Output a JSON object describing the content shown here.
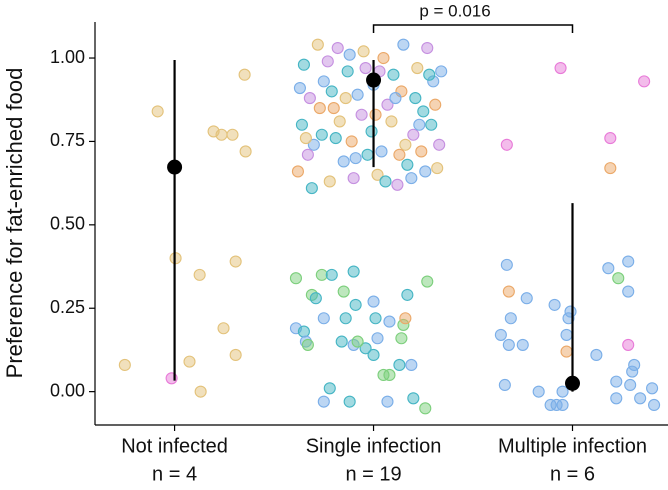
{
  "chart_data": {
    "type": "scatter",
    "ylabel": "Preference for fat-enriched food",
    "annotation": "p = 0.016",
    "xlim": [
      0.6,
      3.48
    ],
    "xticks": [
      {
        "value": 1,
        "label": "Not infected"
      },
      {
        "value": 2,
        "label": "Single infection"
      },
      {
        "value": 3,
        "label": "Multiple infection"
      }
    ],
    "counts": [
      "n = 4",
      "n = 19",
      "n = 6"
    ],
    "ylim": [
      -0.1,
      1.108
    ],
    "yticks": [
      {
        "value": 0,
        "label": "0.00"
      },
      {
        "value": 0.25,
        "label": "0.25"
      },
      {
        "value": 0.5,
        "label": "0.50"
      },
      {
        "value": 0.75,
        "label": "0.75"
      },
      {
        "value": 1,
        "label": "1.00"
      }
    ],
    "means": {
      "color": "#000000",
      "values": [
        0.673,
        0.934,
        0.025
      ],
      "lower": [
        0.033,
        0.673,
        0
      ],
      "upper": [
        0.994,
        0.994,
        0.565
      ]
    },
    "points": [
      {
        "x": 0.75,
        "y": 0.08,
        "color": "#e3c27a"
      },
      {
        "x": 0.915,
        "y": 0.84,
        "color": "#e3c27a"
      },
      {
        "x": 0.985,
        "y": 0.04,
        "color": "#e87ad8"
      },
      {
        "x": 1.005,
        "y": 0.4,
        "color": "#e3c27a"
      },
      {
        "x": 1.126,
        "y": 0.35,
        "color": "#e3c27a"
      },
      {
        "x": 1.075,
        "y": 0.09,
        "color": "#e3c27a"
      },
      {
        "x": 1.131,
        "y": 0.0,
        "color": "#e3c27a"
      },
      {
        "x": 1.196,
        "y": 0.78,
        "color": "#e3c27a"
      },
      {
        "x": 1.236,
        "y": 0.77,
        "color": "#e3c27a"
      },
      {
        "x": 1.291,
        "y": 0.77,
        "color": "#e3c27a"
      },
      {
        "x": 1.357,
        "y": 0.72,
        "color": "#e3c27a"
      },
      {
        "x": 1.352,
        "y": 0.95,
        "color": "#e3c27a"
      },
      {
        "x": 1.307,
        "y": 0.39,
        "color": "#e3c27a"
      },
      {
        "x": 1.246,
        "y": 0.19,
        "color": "#e3c27a"
      },
      {
        "x": 1.307,
        "y": 0.11,
        "color": "#e3c27a"
      },
      {
        "x": 1.61,
        "y": 0.34,
        "color": "#7ccf7c"
      },
      {
        "x": 1.61,
        "y": 0.19,
        "color": "#7aaee8"
      },
      {
        "x": 1.65,
        "y": 0.18,
        "color": "#45b5c4"
      },
      {
        "x": 1.66,
        "y": 0.15,
        "color": "#7aaee8"
      },
      {
        "x": 1.67,
        "y": 0.14,
        "color": "#7ccf7c"
      },
      {
        "x": 1.69,
        "y": 0.29,
        "color": "#7ccf7c"
      },
      {
        "x": 1.71,
        "y": 0.28,
        "color": "#45b5c4"
      },
      {
        "x": 1.75,
        "y": 0.22,
        "color": "#7aaee8"
      },
      {
        "x": 1.74,
        "y": 0.35,
        "color": "#7ccf7c"
      },
      {
        "x": 1.79,
        "y": 0.35,
        "color": "#45b5c4"
      },
      {
        "x": 1.9,
        "y": 0.36,
        "color": "#45b5c4"
      },
      {
        "x": 1.85,
        "y": 0.3,
        "color": "#7ccf7c"
      },
      {
        "x": 1.91,
        "y": 0.26,
        "color": "#45b5c4"
      },
      {
        "x": 2.0,
        "y": 0.27,
        "color": "#7aaee8"
      },
      {
        "x": 2.01,
        "y": 0.22,
        "color": "#45b5c4"
      },
      {
        "x": 2.08,
        "y": 0.21,
        "color": "#7aaee8"
      },
      {
        "x": 2.17,
        "y": 0.29,
        "color": "#45b5c4"
      },
      {
        "x": 2.27,
        "y": 0.33,
        "color": "#7ccf7c"
      },
      {
        "x": 2.15,
        "y": 0.2,
        "color": "#7ccf7c"
      },
      {
        "x": 2.16,
        "y": 0.22,
        "color": "#eba868"
      },
      {
        "x": 1.84,
        "y": 0.15,
        "color": "#45b5c4"
      },
      {
        "x": 1.9,
        "y": 0.14,
        "color": "#7aaee8"
      },
      {
        "x": 1.96,
        "y": 0.13,
        "color": "#45b5c4"
      },
      {
        "x": 1.92,
        "y": 0.15,
        "color": "#7ccf7c"
      },
      {
        "x": 2.02,
        "y": 0.16,
        "color": "#7aaee8"
      },
      {
        "x": 2.0,
        "y": 0.11,
        "color": "#45b5c4"
      },
      {
        "x": 2.05,
        "y": 0.05,
        "color": "#7ccf7c"
      },
      {
        "x": 2.08,
        "y": 0.05,
        "color": "#7ccf7c"
      },
      {
        "x": 2.13,
        "y": 0.08,
        "color": "#45b5c4"
      },
      {
        "x": 2.19,
        "y": 0.08,
        "color": "#7aaee8"
      },
      {
        "x": 2.14,
        "y": 0.16,
        "color": "#7ccf7c"
      },
      {
        "x": 1.78,
        "y": 0.01,
        "color": "#45b5c4"
      },
      {
        "x": 1.75,
        "y": -0.03,
        "color": "#7aaee8"
      },
      {
        "x": 1.88,
        "y": -0.03,
        "color": "#45b5c4"
      },
      {
        "x": 2.07,
        "y": -0.03,
        "color": "#7aaee8"
      },
      {
        "x": 2.2,
        "y": -0.02,
        "color": "#45b5c4"
      },
      {
        "x": 2.26,
        "y": -0.05,
        "color": "#7ccf7c"
      },
      {
        "x": 1.86,
        "y": 0.22,
        "color": "#45b5c4"
      },
      {
        "x": 1.62,
        "y": 0.66,
        "color": "#eba868"
      },
      {
        "x": 1.65,
        "y": 0.98,
        "color": "#45b5c4"
      },
      {
        "x": 1.68,
        "y": 0.88,
        "color": "#c58fe0"
      },
      {
        "x": 1.7,
        "y": 0.74,
        "color": "#7aaee8"
      },
      {
        "x": 1.72,
        "y": 1.04,
        "color": "#e3c27a"
      },
      {
        "x": 1.64,
        "y": 0.8,
        "color": "#45b5c4"
      },
      {
        "x": 1.67,
        "y": 0.71,
        "color": "#c58fe0"
      },
      {
        "x": 1.75,
        "y": 0.93,
        "color": "#7aaee8"
      },
      {
        "x": 1.78,
        "y": 0.63,
        "color": "#e3c27a"
      },
      {
        "x": 1.8,
        "y": 0.85,
        "color": "#eba868"
      },
      {
        "x": 1.74,
        "y": 0.77,
        "color": "#45b5c4"
      },
      {
        "x": 1.82,
        "y": 1.03,
        "color": "#c58fe0"
      },
      {
        "x": 1.85,
        "y": 0.69,
        "color": "#7aaee8"
      },
      {
        "x": 1.87,
        "y": 0.96,
        "color": "#45b5c4"
      },
      {
        "x": 1.83,
        "y": 0.81,
        "color": "#e3c27a"
      },
      {
        "x": 1.9,
        "y": 0.64,
        "color": "#c58fe0"
      },
      {
        "x": 1.92,
        "y": 0.89,
        "color": "#7aaee8"
      },
      {
        "x": 1.89,
        "y": 0.75,
        "color": "#eba868"
      },
      {
        "x": 1.95,
        "y": 1.02,
        "color": "#e3c27a"
      },
      {
        "x": 1.97,
        "y": 0.71,
        "color": "#45b5c4"
      },
      {
        "x": 1.94,
        "y": 0.83,
        "color": "#c58fe0"
      },
      {
        "x": 2.0,
        "y": 0.92,
        "color": "#7aaee8"
      },
      {
        "x": 2.02,
        "y": 0.65,
        "color": "#e3c27a"
      },
      {
        "x": 1.99,
        "y": 0.78,
        "color": "#45b5c4"
      },
      {
        "x": 2.05,
        "y": 1.0,
        "color": "#eba868"
      },
      {
        "x": 2.07,
        "y": 0.86,
        "color": "#c58fe0"
      },
      {
        "x": 2.04,
        "y": 0.72,
        "color": "#7aaee8"
      },
      {
        "x": 2.1,
        "y": 0.95,
        "color": "#45b5c4"
      },
      {
        "x": 2.12,
        "y": 0.62,
        "color": "#c58fe0"
      },
      {
        "x": 2.09,
        "y": 0.81,
        "color": "#e3c27a"
      },
      {
        "x": 2.15,
        "y": 1.04,
        "color": "#7aaee8"
      },
      {
        "x": 2.17,
        "y": 0.68,
        "color": "#45b5c4"
      },
      {
        "x": 2.14,
        "y": 0.9,
        "color": "#eba868"
      },
      {
        "x": 2.2,
        "y": 0.77,
        "color": "#c58fe0"
      },
      {
        "x": 2.22,
        "y": 0.97,
        "color": "#e3c27a"
      },
      {
        "x": 2.19,
        "y": 0.64,
        "color": "#7aaee8"
      },
      {
        "x": 2.25,
        "y": 0.84,
        "color": "#45b5c4"
      },
      {
        "x": 2.27,
        "y": 1.03,
        "color": "#c58fe0"
      },
      {
        "x": 2.24,
        "y": 0.72,
        "color": "#eba868"
      },
      {
        "x": 2.3,
        "y": 0.93,
        "color": "#7aaee8"
      },
      {
        "x": 2.32,
        "y": 0.67,
        "color": "#e3c27a"
      },
      {
        "x": 2.29,
        "y": 0.8,
        "color": "#45b5c4"
      },
      {
        "x": 2.34,
        "y": 0.96,
        "color": "#7aaee8"
      },
      {
        "x": 2.33,
        "y": 0.74,
        "color": "#c58fe0"
      },
      {
        "x": 1.63,
        "y": 0.91,
        "color": "#7aaee8"
      },
      {
        "x": 1.69,
        "y": 0.61,
        "color": "#45b5c4"
      },
      {
        "x": 1.73,
        "y": 0.85,
        "color": "#eba868"
      },
      {
        "x": 1.77,
        "y": 0.99,
        "color": "#c58fe0"
      },
      {
        "x": 1.81,
        "y": 0.76,
        "color": "#45b5c4"
      },
      {
        "x": 1.86,
        "y": 0.88,
        "color": "#e3c27a"
      },
      {
        "x": 1.91,
        "y": 0.7,
        "color": "#7aaee8"
      },
      {
        "x": 1.96,
        "y": 0.97,
        "color": "#c58fe0"
      },
      {
        "x": 2.01,
        "y": 0.83,
        "color": "#eba868"
      },
      {
        "x": 2.06,
        "y": 0.63,
        "color": "#45b5c4"
      },
      {
        "x": 2.11,
        "y": 0.88,
        "color": "#7aaee8"
      },
      {
        "x": 2.16,
        "y": 0.74,
        "color": "#e3c27a"
      },
      {
        "x": 2.21,
        "y": 0.88,
        "color": "#45b5c4"
      },
      {
        "x": 2.26,
        "y": 0.66,
        "color": "#7aaee8"
      },
      {
        "x": 2.31,
        "y": 0.86,
        "color": "#eba868"
      },
      {
        "x": 1.66,
        "y": 0.76,
        "color": "#e3c27a"
      },
      {
        "x": 1.79,
        "y": 0.9,
        "color": "#45b5c4"
      },
      {
        "x": 1.88,
        "y": 1.01,
        "color": "#7aaee8"
      },
      {
        "x": 2.03,
        "y": 0.96,
        "color": "#c58fe0"
      },
      {
        "x": 2.13,
        "y": 0.71,
        "color": "#eba868"
      },
      {
        "x": 2.23,
        "y": 0.8,
        "color": "#7aaee8"
      },
      {
        "x": 2.28,
        "y": 0.95,
        "color": "#45b5c4"
      },
      {
        "x": 2.67,
        "y": 0.38,
        "color": "#7aaee8"
      },
      {
        "x": 2.68,
        "y": 0.3,
        "color": "#eba868"
      },
      {
        "x": 2.69,
        "y": 0.22,
        "color": "#7aaee8"
      },
      {
        "x": 2.64,
        "y": 0.17,
        "color": "#7aaee8"
      },
      {
        "x": 2.68,
        "y": 0.14,
        "color": "#7aaee8"
      },
      {
        "x": 2.75,
        "y": 0.14,
        "color": "#7aaee8"
      },
      {
        "x": 2.77,
        "y": 0.28,
        "color": "#7aaee8"
      },
      {
        "x": 2.66,
        "y": 0.02,
        "color": "#7aaee8"
      },
      {
        "x": 2.67,
        "y": 0.74,
        "color": "#e87ad8"
      },
      {
        "x": 2.91,
        "y": 0.26,
        "color": "#7aaee8"
      },
      {
        "x": 2.97,
        "y": 0.17,
        "color": "#7aaee8"
      },
      {
        "x": 2.98,
        "y": 0.22,
        "color": "#7aaee8"
      },
      {
        "x": 2.99,
        "y": 0.24,
        "color": "#7aaee8"
      },
      {
        "x": 2.97,
        "y": 0.12,
        "color": "#eba868"
      },
      {
        "x": 2.89,
        "y": -0.04,
        "color": "#7aaee8"
      },
      {
        "x": 2.92,
        "y": -0.04,
        "color": "#7aaee8"
      },
      {
        "x": 2.95,
        "y": -0.04,
        "color": "#7aaee8"
      },
      {
        "x": 2.95,
        "y": 0.0,
        "color": "#7aaee8"
      },
      {
        "x": 2.83,
        "y": 0.0,
        "color": "#7aaee8"
      },
      {
        "x": 2.94,
        "y": 0.97,
        "color": "#e87ad8"
      },
      {
        "x": 3.19,
        "y": 0.76,
        "color": "#e87ad8"
      },
      {
        "x": 3.19,
        "y": 0.67,
        "color": "#eba868"
      },
      {
        "x": 3.18,
        "y": 0.37,
        "color": "#7aaee8"
      },
      {
        "x": 3.23,
        "y": 0.34,
        "color": "#7ccf7c"
      },
      {
        "x": 3.28,
        "y": 0.39,
        "color": "#7aaee8"
      },
      {
        "x": 3.28,
        "y": 0.3,
        "color": "#7aaee8"
      },
      {
        "x": 3.28,
        "y": 0.14,
        "color": "#e87ad8"
      },
      {
        "x": 3.22,
        "y": 0.03,
        "color": "#7aaee8"
      },
      {
        "x": 3.31,
        "y": 0.08,
        "color": "#7aaee8"
      },
      {
        "x": 3.3,
        "y": 0.06,
        "color": "#7aaee8"
      },
      {
        "x": 3.29,
        "y": 0.02,
        "color": "#7aaee8"
      },
      {
        "x": 3.36,
        "y": 0.93,
        "color": "#e87ad8"
      },
      {
        "x": 3.12,
        "y": 0.11,
        "color": "#7aaee8"
      },
      {
        "x": 3.22,
        "y": -0.02,
        "color": "#7aaee8"
      },
      {
        "x": 3.34,
        "y": -0.02,
        "color": "#7aaee8"
      },
      {
        "x": 3.41,
        "y": -0.04,
        "color": "#7aaee8"
      },
      {
        "x": 3.4,
        "y": 0.01,
        "color": "#7aaee8"
      }
    ]
  }
}
